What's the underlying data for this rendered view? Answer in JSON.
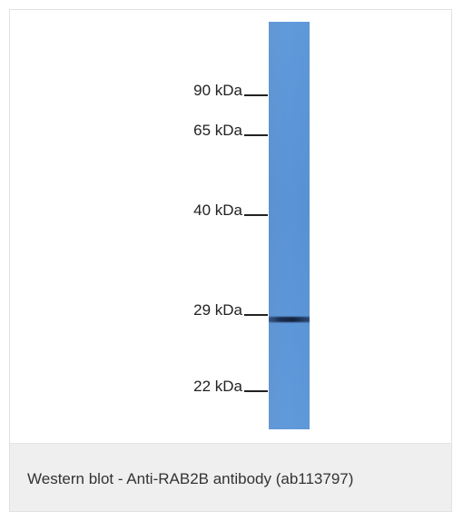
{
  "figure": {
    "markers": [
      {
        "label": "90 kDa"
      },
      {
        "label": "65 kDa"
      },
      {
        "label": "40 kDa"
      },
      {
        "label": "29 kDa"
      },
      {
        "label": "22 kDa"
      }
    ],
    "lane_color": "#5b97db",
    "band_color": "#1c2f55"
  },
  "caption": {
    "text": "Western blot - Anti-RAB2B antibody (ab113797)"
  }
}
